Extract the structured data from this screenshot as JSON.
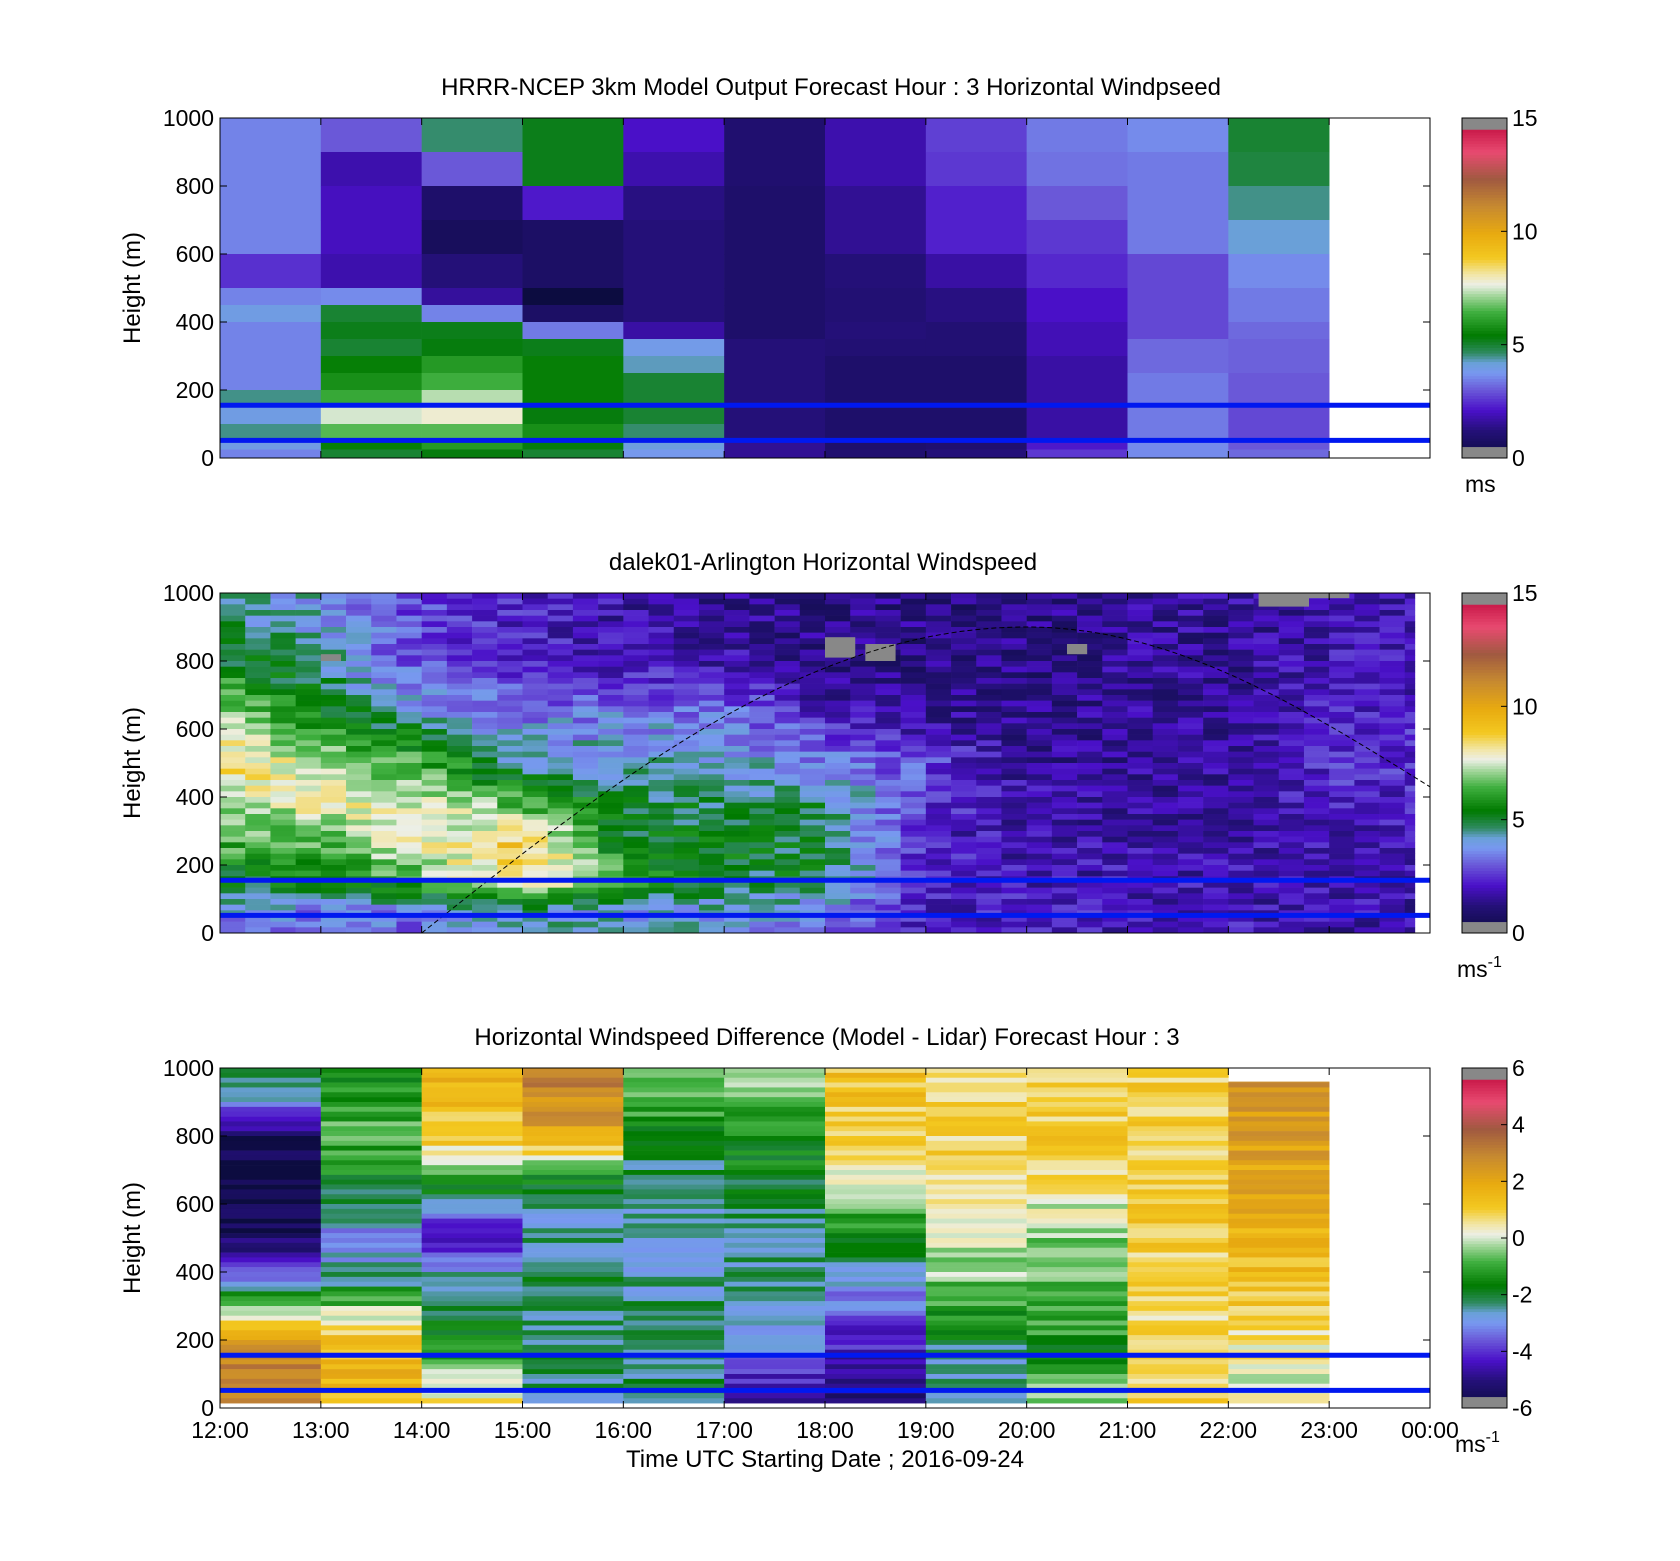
{
  "chart_data": [
    {
      "type": "heatmap",
      "title": "HRRR-NCEP 3km Model Output   Forecast Hour : 3 Horizontal Windpseed",
      "ylabel": "Height (m)",
      "yticks": [
        "1000",
        "800",
        "600",
        "400",
        "200",
        "0"
      ],
      "ylim": [
        0,
        1000
      ],
      "xlim_hours": [
        12,
        24
      ],
      "colorbar": {
        "ticks": [
          "15",
          "10",
          "5",
          "0"
        ],
        "range": [
          0,
          15
        ],
        "unit": "ms",
        "unit_sup": ""
      },
      "reference_lines_m": [
        155,
        52
      ],
      "data_end_hour": 23,
      "row_heights_m": [
        1000,
        900,
        800,
        700,
        600,
        500,
        450,
        400,
        350,
        300,
        250,
        200,
        150,
        100,
        50,
        25
      ],
      "values": [
        [
          3.5,
          3.5,
          3.5,
          3.5,
          2.5,
          3.5,
          4.0,
          3.5,
          3.5,
          3.5,
          3.5,
          4.5,
          4.0,
          4.5,
          4.0,
          3.5
        ],
        [
          3.0,
          1.8,
          2.0,
          2.0,
          1.8,
          3.6,
          5.0,
          5.2,
          5.0,
          5.5,
          5.8,
          6.3,
          7.5,
          6.6,
          5.5,
          5.0
        ],
        [
          4.6,
          3.0,
          0.9,
          0.6,
          1.2,
          1.6,
          3.5,
          5.2,
          5.3,
          6.0,
          6.4,
          7.3,
          7.8,
          6.6,
          6.0,
          5.3
        ],
        [
          5.2,
          5.2,
          2.2,
          0.8,
          0.8,
          0.0,
          0.8,
          3.4,
          5.2,
          5.5,
          5.5,
          5.5,
          5.3,
          5.8,
          5.3,
          5.0
        ],
        [
          2.1,
          1.8,
          1.3,
          1.2,
          1.2,
          1.2,
          1.2,
          1.7,
          3.9,
          4.3,
          5.0,
          5.0,
          5.0,
          4.6,
          4.1,
          3.8
        ],
        [
          1.0,
          1.0,
          0.9,
          0.9,
          0.9,
          0.9,
          0.9,
          0.9,
          1.2,
          1.2,
          1.2,
          1.2,
          1.2,
          1.2,
          1.5,
          1.5
        ],
        [
          1.8,
          1.8,
          1.5,
          1.5,
          1.2,
          1.1,
          1.1,
          1.2,
          1.1,
          0.9,
          0.9,
          0.9,
          0.9,
          0.9,
          0.9,
          1.0
        ],
        [
          2.7,
          2.6,
          2.3,
          2.3,
          1.7,
          1.3,
          1.3,
          1.1,
          1.1,
          0.9,
          0.9,
          0.9,
          0.9,
          0.9,
          1.0,
          1.2
        ],
        [
          3.4,
          3.3,
          3.0,
          2.6,
          2.4,
          2.1,
          2.1,
          1.9,
          1.9,
          1.7,
          1.7,
          1.7,
          1.7,
          1.7,
          2.2,
          2.6
        ],
        [
          3.6,
          3.4,
          3.4,
          3.4,
          2.8,
          2.8,
          2.8,
          2.8,
          3.2,
          3.2,
          3.4,
          3.4,
          3.4,
          3.4,
          3.6,
          3.6
        ],
        [
          5.0,
          4.9,
          4.5,
          4.2,
          3.6,
          3.4,
          3.4,
          3.2,
          3.1,
          3.1,
          3.0,
          3.0,
          2.8,
          2.8,
          3.0,
          3.2
        ]
      ]
    },
    {
      "type": "heatmap",
      "title": "dalek01-Arlington  Horizontal Windspeed",
      "ylabel": "Height (m)",
      "yticks": [
        "1000",
        "800",
        "600",
        "400",
        "200",
        "0"
      ],
      "ylim": [
        0,
        1000
      ],
      "xlim_hours": [
        12,
        24
      ],
      "colorbar": {
        "ticks": [
          "15",
          "10",
          "5",
          "0"
        ],
        "range": [
          0,
          15
        ],
        "unit": "ms",
        "unit_sup": "-1"
      },
      "reference_lines_m": [
        155,
        52
      ],
      "data_end_hour": 23.85,
      "column_minutes": 15,
      "curve": {
        "start_hour": 14.0,
        "peak_hour": 20.0,
        "peak_m": 900,
        "end_hour": 24.0,
        "end_m": 430
      },
      "profiles": {
        "hours": [
          12,
          13,
          14,
          15,
          16,
          17,
          18,
          19,
          20,
          21,
          22,
          23,
          24
        ],
        "heights_m": [
          950,
          800,
          650,
          500,
          380,
          260,
          150,
          60
        ],
        "values": [
          [
            4.5,
            5.3,
            7.5,
            8.8,
            7.2,
            6.4,
            5.2,
            3.8
          ],
          [
            4.0,
            4.3,
            5.5,
            7.2,
            7.8,
            6.6,
            5.3,
            3.4
          ],
          [
            2.8,
            2.8,
            4.1,
            6.4,
            7.6,
            7.6,
            6.4,
            3.3
          ],
          [
            2.2,
            2.2,
            3.4,
            4.3,
            6.4,
            9.0,
            8.5,
            4.2
          ],
          [
            1.8,
            1.9,
            3.5,
            4.1,
            5.1,
            5.3,
            6.2,
            4.0
          ],
          [
            1.5,
            1.8,
            3.4,
            4.1,
            4.8,
            5.2,
            5.0,
            3.8
          ],
          [
            1.3,
            1.3,
            2.0,
            3.5,
            4.8,
            5.0,
            5.0,
            3.5
          ],
          [
            1.3,
            1.3,
            1.5,
            2.8,
            2.6,
            2.1,
            2.3,
            2.1
          ],
          [
            1.3,
            1.3,
            1.3,
            1.6,
            1.8,
            1.8,
            2.0,
            2.3
          ],
          [
            1.5,
            1.5,
            1.5,
            1.5,
            1.6,
            1.8,
            2.0,
            2.0
          ],
          [
            1.6,
            1.5,
            1.5,
            1.5,
            1.6,
            1.8,
            1.9,
            2.0
          ],
          [
            1.8,
            2.0,
            2.2,
            2.4,
            2.2,
            1.9,
            1.8,
            1.8
          ],
          [
            1.8,
            2.0,
            2.2,
            2.4,
            2.2,
            1.9,
            1.8,
            1.8
          ]
        ]
      }
    },
    {
      "type": "heatmap",
      "title": "Horizontal Windspeed Difference (Model - Lidar) Forecast Hour : 3",
      "ylabel": "Height (m)",
      "xlabel": "Time UTC  Starting Date ; 2016-09-24",
      "xticks": [
        "12:00",
        "13:00",
        "14:00",
        "15:00",
        "16:00",
        "17:00",
        "18:00",
        "19:00",
        "20:00",
        "21:00",
        "22:00",
        "23:00",
        "00:00"
      ],
      "yticks": [
        "1000",
        "800",
        "600",
        "400",
        "200",
        "0"
      ],
      "ylim": [
        0,
        1000
      ],
      "xlim_hours": [
        12,
        24
      ],
      "colorbar": {
        "ticks": [
          "6",
          "4",
          "2",
          "0",
          "-2",
          "-4",
          "-6"
        ],
        "range": [
          -6,
          6
        ],
        "unit": "ms",
        "unit_sup": "-1"
      },
      "reference_lines_m": [
        155,
        52
      ],
      "data_end_hour": 23,
      "profiles": {
        "hours": [
          12.5,
          13.5,
          14.5,
          15.5,
          16.5,
          17.5,
          18.5,
          19.5,
          20.5,
          21.5,
          22.5
        ],
        "tops_m": [
          1000,
          1000,
          1000,
          1000,
          1000,
          1000,
          1000,
          1000,
          1000,
          1000,
          960
        ],
        "heights_m": [
          950,
          800,
          650,
          500,
          380,
          260,
          150,
          60
        ],
        "values": [
          [
            -2.0,
            -5.5,
            -6.0,
            -5.5,
            -3.0,
            0.5,
            3.0,
            3.0
          ],
          [
            -1.5,
            -0.8,
            -1.8,
            -3.2,
            -2.5,
            0.5,
            1.5,
            1.5
          ],
          [
            1.5,
            1.2,
            -1.5,
            -5.0,
            -2.5,
            -2.0,
            -1.0,
            0.5
          ],
          [
            3.0,
            2.0,
            -2.2,
            -2.5,
            -2.0,
            -2.2,
            -2.0,
            -2.5
          ],
          [
            -0.6,
            -1.5,
            -2.5,
            -2.5,
            -2.5,
            -2.2,
            -2.2,
            -2.3
          ],
          [
            -0.6,
            -1.5,
            -1.8,
            -2.2,
            -2.5,
            -2.5,
            -3.5,
            -4.5
          ],
          [
            1.2,
            1.0,
            0.2,
            -1.8,
            -2.8,
            -3.8,
            -4.5,
            -5.0
          ],
          [
            0.8,
            0.8,
            0.8,
            0.0,
            -0.5,
            -1.5,
            -2.5,
            -2.5
          ],
          [
            1.0,
            1.0,
            0.5,
            -0.5,
            -0.8,
            -1.0,
            -1.5,
            -0.5
          ],
          [
            1.0,
            1.0,
            1.0,
            1.0,
            0.8,
            0.8,
            0.8,
            0.8
          ],
          [
            2.5,
            2.2,
            2.0,
            1.8,
            1.2,
            0.8,
            0.4,
            0.2
          ]
        ]
      }
    }
  ]
}
